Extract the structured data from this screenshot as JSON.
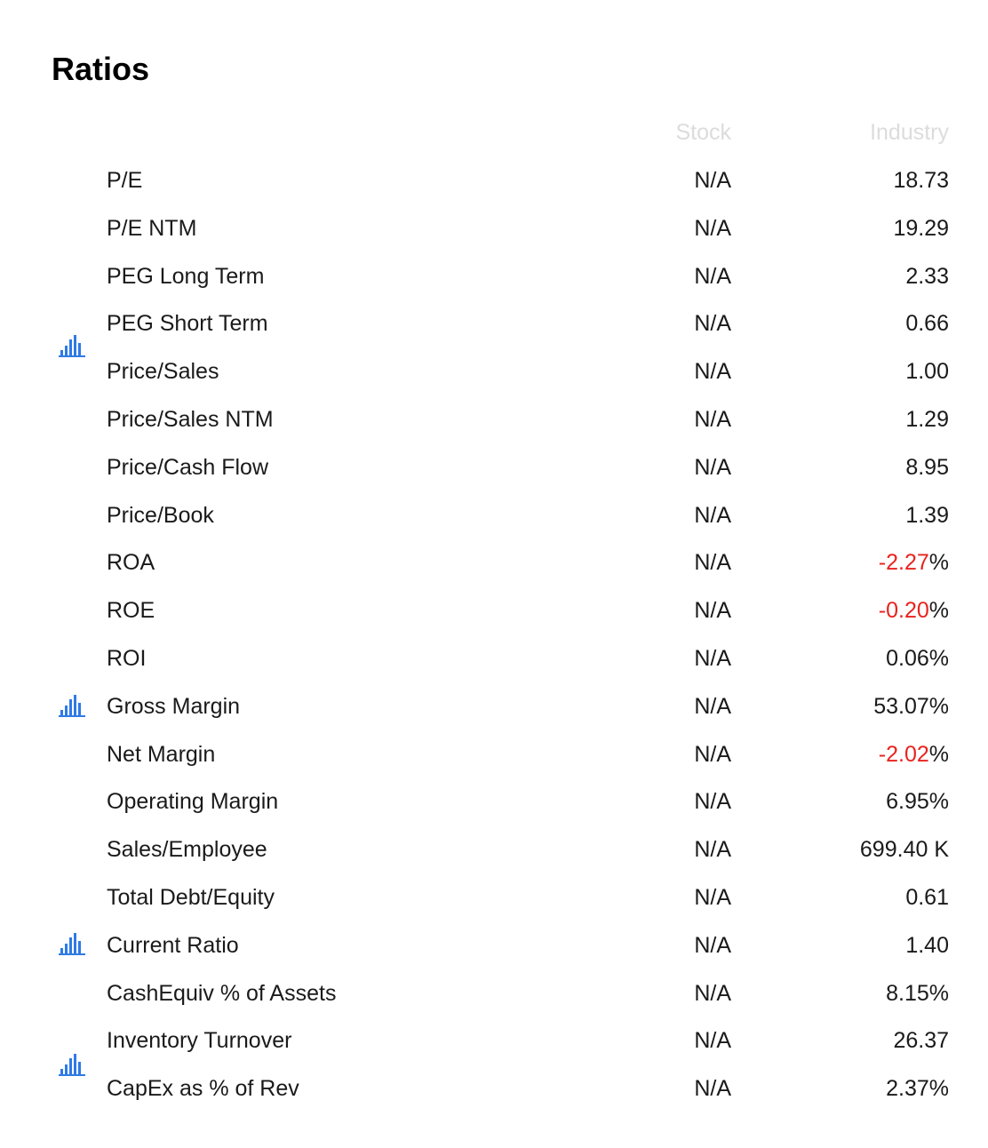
{
  "title": "Ratios",
  "columns": {
    "stock": "Stock",
    "industry": "Industry"
  },
  "icon_color": "#2f7ae5",
  "negative_color": "#e8231f",
  "rows": [
    {
      "label": "P/E",
      "stock": "N/A",
      "industry": "18.73"
    },
    {
      "label": "P/E NTM",
      "stock": "N/A",
      "industry": "19.29"
    },
    {
      "label": "PEG Long Term",
      "stock": "N/A",
      "industry": "2.33"
    },
    {
      "label": "PEG Short Term",
      "stock": "N/A",
      "industry": "0.66"
    },
    {
      "label": "Price/Sales",
      "stock": "N/A",
      "industry": "1.00"
    },
    {
      "label": "Price/Sales NTM",
      "stock": "N/A",
      "industry": "1.29"
    },
    {
      "label": "Price/Cash Flow",
      "stock": "N/A",
      "industry": "8.95"
    },
    {
      "label": "Price/Book",
      "stock": "N/A",
      "industry": "1.39"
    },
    {
      "label": "ROA",
      "stock": "N/A",
      "industry": "-2.27",
      "suffix": "%"
    },
    {
      "label": "ROE",
      "stock": "N/A",
      "industry": "-0.20",
      "suffix": "%"
    },
    {
      "label": "ROI",
      "stock": "N/A",
      "industry": "0.06%"
    },
    {
      "label": "Gross Margin",
      "stock": "N/A",
      "industry": "53.07%"
    },
    {
      "label": "Net Margin",
      "stock": "N/A",
      "industry": "-2.02",
      "suffix": "%"
    },
    {
      "label": "Operating Margin",
      "stock": "N/A",
      "industry": "6.95%"
    },
    {
      "label": "Sales/Employee",
      "stock": "N/A",
      "industry": "699.40 K"
    },
    {
      "label": "Total Debt/Equity",
      "stock": "N/A",
      "industry": "0.61"
    },
    {
      "label": "Current Ratio",
      "stock": "N/A",
      "industry": "1.40"
    },
    {
      "label": "CashEquiv % of Assets",
      "stock": "N/A",
      "industry": "8.15%"
    },
    {
      "label": "Inventory Turnover",
      "stock": "N/A",
      "industry": "26.37"
    },
    {
      "label": "CapEx as % of Rev",
      "stock": "N/A",
      "industry": "2.37%"
    }
  ],
  "chart_icons": [
    {
      "name": "chart-icon-valuation"
    },
    {
      "name": "chart-icon-margins"
    },
    {
      "name": "chart-icon-liquidity"
    },
    {
      "name": "chart-icon-efficiency"
    }
  ]
}
